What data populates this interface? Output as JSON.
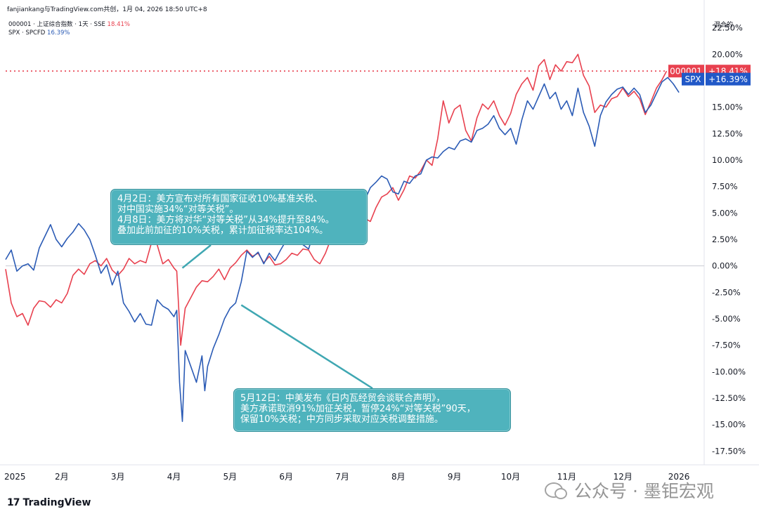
{
  "header": {
    "text": "fanjiankang与TradingView.com共创，1月 04, 2026 18:50 UTC+8"
  },
  "legend": [
    {
      "label": "000001 · 上证综合指数 · 1天 · SSE",
      "value": "18.41%",
      "color": "#e8414f"
    },
    {
      "label": "SPX · SPCFD",
      "value": "16.39%",
      "color": "#2b5bb5"
    }
  ],
  "axis_title": "混合的",
  "badges": [
    {
      "name": "000001",
      "value": "+18.41%",
      "color": "#e8414f"
    },
    {
      "name": "SPX",
      "value": "+16.39%",
      "color": "#2158c7"
    }
  ],
  "annotations": [
    {
      "lines": [
        "4月2日：美方宣布对所有国家征收10%基准关税、",
        "对中国实施34%“对等关税”。",
        "4月8日：美方将对华“对等关税”从34%提升至84%。",
        "叠加此前加征的10%关税，累计加征税率达104%。"
      ],
      "anchor_x": 4.15,
      "anchor_y": -0.2
    },
    {
      "lines": [
        "5月12日：中美发布《日内瓦经贸会谈联合声明》，",
        "美方承诺取消91%加征关税，暂停24%“对等关税”90天，",
        "保留10%关税；中方同步采取对应关税调整措施。"
      ],
      "anchor_x": 5.2,
      "anchor_y": -3.7
    }
  ],
  "branding": {
    "logo": "TradingView",
    "logo_mark": "17"
  },
  "watermark": {
    "text": "公众号 · 墨钜宏观"
  },
  "chart_data": {
    "type": "line",
    "title": "",
    "xlabel": "",
    "ylabel": "",
    "x_unit": "month index since Jan 2025",
    "xlim": [
      1,
      13.45
    ],
    "ylim": [
      -18.8,
      23.8
    ],
    "grid": false,
    "legend_position": "top-left",
    "x_ticks": [
      {
        "x": 1,
        "label": "2025"
      },
      {
        "x": 2,
        "label": "2月"
      },
      {
        "x": 3,
        "label": "3月"
      },
      {
        "x": 4,
        "label": "4月"
      },
      {
        "x": 5,
        "label": "5月"
      },
      {
        "x": 6,
        "label": "6月"
      },
      {
        "x": 7,
        "label": "7月"
      },
      {
        "x": 8,
        "label": "8月"
      },
      {
        "x": 9,
        "label": "9月"
      },
      {
        "x": 10,
        "label": "10月"
      },
      {
        "x": 11,
        "label": "11月"
      },
      {
        "x": 12,
        "label": "12月"
      },
      {
        "x": 13,
        "label": "2026"
      }
    ],
    "y_ticks": [
      {
        "y": 22.5,
        "label": "22.50%"
      },
      {
        "y": 20,
        "label": "20.00%"
      },
      {
        "y": 17.5,
        "label": "17.50%"
      },
      {
        "y": 15,
        "label": "15.00%"
      },
      {
        "y": 12.5,
        "label": "12.50%"
      },
      {
        "y": 10,
        "label": "10.00%"
      },
      {
        "y": 7.5,
        "label": "7.50%"
      },
      {
        "y": 5,
        "label": "5.00%"
      },
      {
        "y": 2.5,
        "label": "2.50%"
      },
      {
        "y": 0,
        "label": "0.00%"
      },
      {
        "y": -2.5,
        "label": "-2.50%"
      },
      {
        "y": -5,
        "label": "-5.00%"
      },
      {
        "y": -7.5,
        "label": "-7.50%"
      },
      {
        "y": -10,
        "label": "-10.00%"
      },
      {
        "y": -12.5,
        "label": "-12.50%"
      },
      {
        "y": -15,
        "label": "-15.00%"
      },
      {
        "y": -17.5,
        "label": "-17.50%"
      }
    ],
    "reference_line": {
      "y": 18.41,
      "color": "#e8414f",
      "style": "dotted"
    },
    "series": [
      {
        "name": "000001",
        "color": "#e8414f",
        "points": [
          [
            1.0,
            -0.3
          ],
          [
            1.1,
            -3.5
          ],
          [
            1.2,
            -4.8
          ],
          [
            1.3,
            -4.5
          ],
          [
            1.4,
            -5.6
          ],
          [
            1.5,
            -4.0
          ],
          [
            1.6,
            -3.3
          ],
          [
            1.7,
            -3.4
          ],
          [
            1.8,
            -3.9
          ],
          [
            1.9,
            -3.2
          ],
          [
            2.0,
            -3.5
          ],
          [
            2.1,
            -2.6
          ],
          [
            2.2,
            -0.9
          ],
          [
            2.3,
            -0.3
          ],
          [
            2.4,
            -0.8
          ],
          [
            2.5,
            0.2
          ],
          [
            2.6,
            0.5
          ],
          [
            2.7,
            0.0
          ],
          [
            2.8,
            0.7
          ],
          [
            2.9,
            -0.4
          ],
          [
            3.0,
            -0.9
          ],
          [
            3.1,
            -0.3
          ],
          [
            3.2,
            0.7
          ],
          [
            3.3,
            0.2
          ],
          [
            3.4,
            0.5
          ],
          [
            3.5,
            0.3
          ],
          [
            3.6,
            2.2
          ],
          [
            3.7,
            2.0
          ],
          [
            3.8,
            0.2
          ],
          [
            3.9,
            0.6
          ],
          [
            4.0,
            -0.2
          ],
          [
            4.05,
            -0.5
          ],
          [
            4.12,
            -7.5
          ],
          [
            4.2,
            -4.0
          ],
          [
            4.3,
            -3.0
          ],
          [
            4.4,
            -2.0
          ],
          [
            4.5,
            -1.4
          ],
          [
            4.6,
            -1.5
          ],
          [
            4.7,
            -1.0
          ],
          [
            4.8,
            -0.3
          ],
          [
            4.9,
            -1.3
          ],
          [
            5.0,
            -0.2
          ],
          [
            5.1,
            0.3
          ],
          [
            5.2,
            1.0
          ],
          [
            5.3,
            1.5
          ],
          [
            5.4,
            0.9
          ],
          [
            5.5,
            1.2
          ],
          [
            5.6,
            0.3
          ],
          [
            5.7,
            0.9
          ],
          [
            5.8,
            0.1
          ],
          [
            5.9,
            0.2
          ],
          [
            6.0,
            0.6
          ],
          [
            6.1,
            1.2
          ],
          [
            6.2,
            1.0
          ],
          [
            6.3,
            1.6
          ],
          [
            6.4,
            1.5
          ],
          [
            6.5,
            0.6
          ],
          [
            6.6,
            0.2
          ],
          [
            6.7,
            1.2
          ],
          [
            6.8,
            2.6
          ],
          [
            6.9,
            3.5
          ],
          [
            7.0,
            3.0
          ],
          [
            7.1,
            3.1
          ],
          [
            7.2,
            3.8
          ],
          [
            7.3,
            4.2
          ],
          [
            7.4,
            4.5
          ],
          [
            7.5,
            4.2
          ],
          [
            7.6,
            5.5
          ],
          [
            7.7,
            6.5
          ],
          [
            7.8,
            6.8
          ],
          [
            7.9,
            7.4
          ],
          [
            8.0,
            6.2
          ],
          [
            8.1,
            7.2
          ],
          [
            8.2,
            8.5
          ],
          [
            8.3,
            8.3
          ],
          [
            8.4,
            9.0
          ],
          [
            8.5,
            10.0
          ],
          [
            8.6,
            9.5
          ],
          [
            8.7,
            12.0
          ],
          [
            8.8,
            15.6
          ],
          [
            8.9,
            13.5
          ],
          [
            9.0,
            14.8
          ],
          [
            9.1,
            15.2
          ],
          [
            9.2,
            12.8
          ],
          [
            9.3,
            11.8
          ],
          [
            9.4,
            14.0
          ],
          [
            9.5,
            15.3
          ],
          [
            9.6,
            14.8
          ],
          [
            9.7,
            15.6
          ],
          [
            9.8,
            14.2
          ],
          [
            9.9,
            13.3
          ],
          [
            10.0,
            14.4
          ],
          [
            10.1,
            16.2
          ],
          [
            10.2,
            17.2
          ],
          [
            10.3,
            17.8
          ],
          [
            10.4,
            16.6
          ],
          [
            10.5,
            18.9
          ],
          [
            10.6,
            19.5
          ],
          [
            10.7,
            17.6
          ],
          [
            10.8,
            19.0
          ],
          [
            10.9,
            18.4
          ],
          [
            11.0,
            19.3
          ],
          [
            11.1,
            19.2
          ],
          [
            11.2,
            20.0
          ],
          [
            11.3,
            18.0
          ],
          [
            11.4,
            17.0
          ],
          [
            11.5,
            14.5
          ],
          [
            11.6,
            15.2
          ],
          [
            11.7,
            15.0
          ],
          [
            11.8,
            15.8
          ],
          [
            11.9,
            16.0
          ],
          [
            12.0,
            16.8
          ],
          [
            12.1,
            16.0
          ],
          [
            12.2,
            16.5
          ],
          [
            12.3,
            15.8
          ],
          [
            12.4,
            14.3
          ],
          [
            12.5,
            15.5
          ],
          [
            12.6,
            16.8
          ],
          [
            12.7,
            17.6
          ],
          [
            12.78,
            18.41
          ]
        ]
      },
      {
        "name": "SPX",
        "color": "#2b5bb5",
        "points": [
          [
            1.0,
            0.6
          ],
          [
            1.1,
            1.5
          ],
          [
            1.2,
            -0.5
          ],
          [
            1.3,
            0.0
          ],
          [
            1.4,
            0.2
          ],
          [
            1.5,
            -0.4
          ],
          [
            1.6,
            1.7
          ],
          [
            1.7,
            2.8
          ],
          [
            1.8,
            3.9
          ],
          [
            1.9,
            2.5
          ],
          [
            2.0,
            1.8
          ],
          [
            2.1,
            2.6
          ],
          [
            2.2,
            3.2
          ],
          [
            2.3,
            4.0
          ],
          [
            2.4,
            3.4
          ],
          [
            2.5,
            2.5
          ],
          [
            2.6,
            1.0
          ],
          [
            2.7,
            -0.7
          ],
          [
            2.8,
            0.1
          ],
          [
            2.9,
            -1.8
          ],
          [
            3.0,
            -0.5
          ],
          [
            3.1,
            -3.5
          ],
          [
            3.2,
            -4.3
          ],
          [
            3.3,
            -5.3
          ],
          [
            3.4,
            -4.5
          ],
          [
            3.5,
            -5.5
          ],
          [
            3.6,
            -5.6
          ],
          [
            3.7,
            -3.2
          ],
          [
            3.8,
            -3.8
          ],
          [
            3.9,
            -4.1
          ],
          [
            4.0,
            -4.8
          ],
          [
            4.05,
            -4.2
          ],
          [
            4.1,
            -11.0
          ],
          [
            4.15,
            -14.7
          ],
          [
            4.2,
            -8.0
          ],
          [
            4.3,
            -9.5
          ],
          [
            4.4,
            -11.0
          ],
          [
            4.5,
            -8.5
          ],
          [
            4.55,
            -11.8
          ],
          [
            4.6,
            -9.5
          ],
          [
            4.7,
            -7.8
          ],
          [
            4.8,
            -6.5
          ],
          [
            4.9,
            -5.0
          ],
          [
            5.0,
            -4.0
          ],
          [
            5.1,
            -3.5
          ],
          [
            5.2,
            -1.5
          ],
          [
            5.3,
            1.4
          ],
          [
            5.4,
            0.8
          ],
          [
            5.5,
            1.3
          ],
          [
            5.6,
            0.2
          ],
          [
            5.7,
            1.2
          ],
          [
            5.8,
            0.5
          ],
          [
            5.9,
            1.5
          ],
          [
            6.0,
            2.4
          ],
          [
            6.1,
            2.8
          ],
          [
            6.2,
            2.2
          ],
          [
            6.3,
            2.0
          ],
          [
            6.4,
            1.6
          ],
          [
            6.5,
            3.3
          ],
          [
            6.6,
            3.0
          ],
          [
            6.7,
            3.8
          ],
          [
            6.8,
            4.8
          ],
          [
            6.9,
            5.5
          ],
          [
            7.0,
            6.6
          ],
          [
            7.1,
            6.2
          ],
          [
            7.2,
            5.8
          ],
          [
            7.3,
            6.8
          ],
          [
            7.4,
            6.2
          ],
          [
            7.5,
            7.4
          ],
          [
            7.6,
            7.9
          ],
          [
            7.7,
            8.5
          ],
          [
            7.8,
            8.2
          ],
          [
            7.9,
            7.0
          ],
          [
            8.0,
            6.8
          ],
          [
            8.1,
            8.0
          ],
          [
            8.2,
            7.8
          ],
          [
            8.3,
            8.5
          ],
          [
            8.4,
            8.7
          ],
          [
            8.5,
            10.0
          ],
          [
            8.6,
            10.3
          ],
          [
            8.7,
            10.2
          ],
          [
            8.8,
            10.8
          ],
          [
            8.9,
            11.2
          ],
          [
            9.0,
            11.0
          ],
          [
            9.1,
            11.8
          ],
          [
            9.2,
            12.0
          ],
          [
            9.3,
            11.7
          ],
          [
            9.4,
            12.8
          ],
          [
            9.5,
            13.0
          ],
          [
            9.6,
            13.4
          ],
          [
            9.7,
            14.2
          ],
          [
            9.8,
            13.0
          ],
          [
            9.9,
            12.4
          ],
          [
            10.0,
            13.0
          ],
          [
            10.1,
            11.5
          ],
          [
            10.2,
            13.8
          ],
          [
            10.3,
            15.6
          ],
          [
            10.4,
            14.8
          ],
          [
            10.5,
            16.0
          ],
          [
            10.6,
            17.2
          ],
          [
            10.7,
            15.8
          ],
          [
            10.8,
            16.4
          ],
          [
            10.9,
            14.8
          ],
          [
            11.0,
            15.6
          ],
          [
            11.1,
            14.2
          ],
          [
            11.2,
            16.8
          ],
          [
            11.3,
            14.5
          ],
          [
            11.4,
            13.2
          ],
          [
            11.5,
            11.3
          ],
          [
            11.6,
            14.2
          ],
          [
            11.7,
            15.5
          ],
          [
            11.8,
            16.2
          ],
          [
            11.9,
            16.7
          ],
          [
            12.0,
            16.9
          ],
          [
            12.1,
            16.2
          ],
          [
            12.2,
            16.8
          ],
          [
            12.3,
            16.2
          ],
          [
            12.4,
            14.5
          ],
          [
            12.5,
            15.2
          ],
          [
            12.6,
            16.3
          ],
          [
            12.7,
            17.4
          ],
          [
            12.8,
            17.8
          ],
          [
            12.9,
            17.2
          ],
          [
            13.0,
            16.39
          ]
        ]
      }
    ]
  }
}
